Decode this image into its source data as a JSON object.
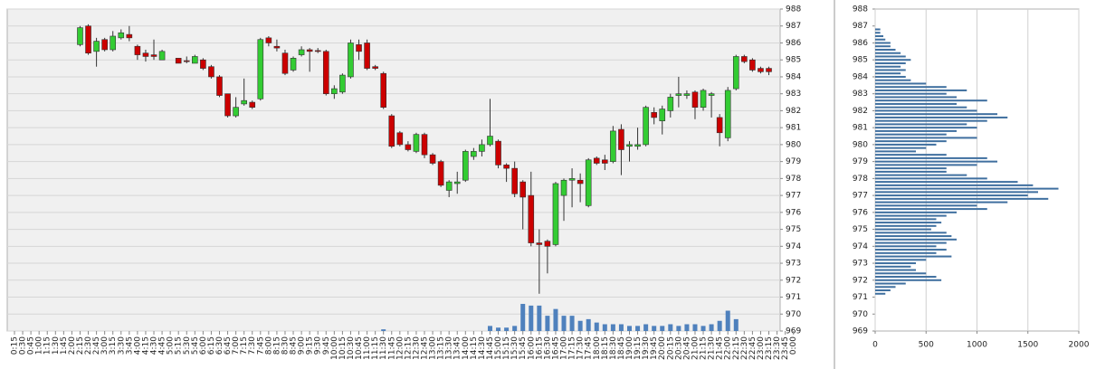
{
  "chart_data": [
    {
      "type": "candlestick",
      "categories": [
        "0:15",
        "0:30",
        "0:45",
        "1:00",
        "1:15",
        "1:30",
        "1:45",
        "2:00",
        "2:15",
        "2:30",
        "2:45",
        "3:00",
        "3:15",
        "3:30",
        "3:45",
        "4:00",
        "4:15",
        "4:30",
        "4:45",
        "5:00",
        "5:15",
        "5:30",
        "5:45",
        "6:00",
        "6:15",
        "6:30",
        "6:45",
        "7:00",
        "7:15",
        "7:30",
        "7:45",
        "8:00",
        "8:15",
        "8:30",
        "8:45",
        "9:00",
        "9:15",
        "9:30",
        "9:45",
        "10:00",
        "10:15",
        "10:30",
        "10:45",
        "11:00",
        "11:15",
        "11:30",
        "11:45",
        "12:00",
        "12:15",
        "12:30",
        "12:45",
        "13:00",
        "13:15",
        "13:30",
        "13:45",
        "14:00",
        "14:15",
        "14:30",
        "14:45",
        "15:00",
        "15:15",
        "15:30",
        "15:45",
        "16:00",
        "16:15",
        "16:30",
        "16:45",
        "17:00",
        "17:15",
        "17:30",
        "17:45",
        "18:00",
        "18:15",
        "18:30",
        "18:45",
        "19:00",
        "19:15",
        "19:30",
        "19:45",
        "20:00",
        "20:15",
        "20:30",
        "20:45",
        "21:00",
        "21:15",
        "21:30",
        "21:45",
        "22:00",
        "22:15",
        "22:30",
        "22:45",
        "23:00",
        "23:15",
        "23:30",
        "23:45",
        "0:00"
      ],
      "open": [
        null,
        null,
        null,
        null,
        null,
        null,
        null,
        null,
        985.9,
        987.0,
        985.5,
        986.2,
        985.6,
        986.3,
        986.5,
        985.8,
        985.4,
        985.3,
        985.0,
        null,
        985.1,
        984.95,
        984.8,
        985.0,
        984.6,
        984.0,
        983.0,
        981.7,
        982.4,
        982.5,
        982.7,
        986.3,
        985.8,
        985.4,
        984.4,
        985.3,
        985.6,
        985.55,
        985.5,
        983.0,
        983.1,
        984.0,
        985.9,
        986.0,
        984.6,
        984.2,
        981.7,
        980.7,
        980.0,
        979.6,
        980.6,
        979.4,
        979.0,
        977.3,
        977.7,
        977.9,
        979.3,
        979.6,
        980.0,
        980.2,
        978.8,
        978.6,
        977.8,
        977.0,
        974.2,
        974.3,
        974.1,
        977.0,
        977.9,
        977.9,
        976.4,
        979.2,
        979.1,
        979.0,
        980.9,
        979.9,
        979.9,
        980.0,
        981.9,
        981.4,
        982.0,
        982.9,
        982.9,
        983.1,
        982.2,
        982.9,
        981.6,
        980.4,
        983.3,
        985.2,
        985.0,
        984.5,
        984.5,
        null,
        null,
        null
      ],
      "high": [
        null,
        null,
        null,
        null,
        null,
        null,
        null,
        null,
        987.0,
        987.1,
        986.3,
        986.3,
        986.7,
        986.8,
        987.0,
        985.9,
        985.6,
        986.2,
        985.6,
        null,
        985.1,
        985.2,
        985.3,
        985.1,
        984.7,
        984.1,
        983.0,
        982.8,
        983.9,
        982.6,
        986.3,
        986.4,
        986.2,
        985.6,
        985.2,
        985.8,
        985.7,
        985.7,
        985.6,
        983.5,
        984.2,
        986.2,
        986.2,
        986.2,
        984.7,
        984.3,
        981.8,
        980.8,
        980.2,
        980.7,
        980.7,
        979.5,
        979.1,
        977.9,
        978.4,
        979.7,
        979.8,
        980.3,
        982.7,
        980.3,
        978.9,
        979.0,
        977.9,
        978.4,
        975.0,
        974.4,
        977.8,
        978.0,
        978.6,
        978.3,
        979.2,
        979.3,
        979.4,
        981.1,
        981.2,
        980.2,
        981.0,
        982.3,
        982.2,
        982.3,
        983.0,
        984.0,
        983.2,
        983.2,
        983.3,
        983.1,
        981.8,
        983.4,
        985.3,
        985.3,
        985.1,
        984.6,
        984.6,
        null,
        null,
        null
      ],
      "low": [
        null,
        null,
        null,
        null,
        null,
        null,
        null,
        null,
        985.8,
        985.3,
        984.6,
        985.5,
        985.5,
        986.2,
        986.1,
        985.0,
        984.9,
        985.0,
        985.0,
        null,
        984.8,
        984.8,
        984.8,
        984.4,
        983.9,
        982.8,
        981.6,
        981.6,
        982.3,
        982.1,
        982.6,
        985.8,
        985.5,
        984.1,
        984.3,
        985.2,
        984.3,
        985.4,
        982.9,
        982.7,
        983.0,
        983.9,
        985.0,
        984.4,
        984.4,
        982.1,
        979.8,
        979.9,
        979.6,
        979.5,
        979.2,
        978.8,
        977.5,
        976.9,
        977.1,
        977.8,
        979.1,
        979.3,
        979.9,
        978.6,
        977.8,
        976.9,
        975.0,
        974.0,
        971.2,
        972.4,
        974.0,
        975.5,
        976.3,
        976.6,
        976.3,
        978.8,
        978.5,
        978.9,
        978.2,
        979.0,
        979.7,
        979.9,
        981.2,
        980.6,
        981.6,
        982.2,
        982.7,
        981.5,
        982.0,
        981.6,
        979.9,
        980.2,
        983.2,
        984.8,
        984.3,
        984.2,
        984.1,
        null,
        null,
        null
      ],
      "close": [
        null,
        null,
        null,
        null,
        null,
        null,
        null,
        null,
        986.9,
        985.4,
        986.1,
        985.6,
        986.4,
        986.6,
        986.3,
        985.3,
        985.2,
        985.2,
        985.5,
        null,
        984.8,
        984.9,
        985.2,
        984.5,
        984.0,
        982.9,
        981.7,
        982.2,
        982.6,
        982.2,
        986.2,
        986.0,
        985.7,
        984.2,
        985.1,
        985.6,
        985.5,
        985.5,
        983.0,
        983.3,
        984.1,
        986.0,
        985.5,
        984.5,
        984.5,
        982.2,
        979.9,
        980.0,
        979.7,
        980.6,
        979.4,
        978.9,
        977.6,
        977.8,
        977.8,
        979.6,
        979.6,
        980.0,
        980.5,
        978.8,
        978.6,
        977.1,
        976.9,
        974.2,
        974.1,
        974.0,
        977.7,
        977.9,
        978.0,
        977.7,
        979.1,
        978.9,
        978.9,
        980.8,
        979.7,
        980.0,
        980.0,
        982.2,
        981.6,
        982.1,
        982.8,
        983.0,
        983.0,
        982.2,
        983.2,
        983.0,
        980.7,
        983.2,
        985.2,
        984.9,
        984.4,
        984.3,
        984.3,
        null,
        null,
        null
      ],
      "volume": [
        null,
        null,
        null,
        null,
        null,
        null,
        null,
        null,
        null,
        null,
        null,
        null,
        null,
        null,
        null,
        null,
        null,
        null,
        null,
        null,
        null,
        null,
        null,
        null,
        null,
        null,
        null,
        null,
        null,
        null,
        null,
        null,
        null,
        null,
        null,
        null,
        null,
        null,
        null,
        null,
        null,
        null,
        null,
        null,
        null,
        969.1,
        null,
        null,
        null,
        null,
        null,
        null,
        null,
        null,
        null,
        null,
        null,
        null,
        969.3,
        969.2,
        969.2,
        969.3,
        970.6,
        970.5,
        970.5,
        969.9,
        970.3,
        969.9,
        969.9,
        969.6,
        969.7,
        969.5,
        969.4,
        969.4,
        969.4,
        969.3,
        969.3,
        969.4,
        969.3,
        969.3,
        969.4,
        969.3,
        969.4,
        969.4,
        969.3,
        969.4,
        969.6,
        970.2,
        969.7,
        null,
        null,
        null,
        null,
        null,
        null,
        null
      ],
      "up_color": "#33cc33",
      "down_color": "#cc0000",
      "volume_color": "#4f81bd",
      "ylim": [
        969,
        988
      ],
      "yticks": [
        969,
        970,
        971,
        972,
        973,
        974,
        975,
        976,
        977,
        978,
        979,
        980,
        981,
        982,
        983,
        984,
        985,
        986,
        987,
        988
      ],
      "grid": true
    },
    {
      "type": "bar",
      "orientation": "horizontal",
      "color": "#3f6f9f",
      "y": [
        986.8,
        986.6,
        986.4,
        986.2,
        986.0,
        985.8,
        985.6,
        985.4,
        985.2,
        985.0,
        984.8,
        984.6,
        984.4,
        984.2,
        984.0,
        983.8,
        983.6,
        983.4,
        983.2,
        983.0,
        982.8,
        982.6,
        982.4,
        982.2,
        982.0,
        981.8,
        981.6,
        981.4,
        981.2,
        981.0,
        980.8,
        980.6,
        980.4,
        980.2,
        980.0,
        979.8,
        979.6,
        979.4,
        979.2,
        979.0,
        978.8,
        978.6,
        978.4,
        978.2,
        978.0,
        977.8,
        977.6,
        977.4,
        977.2,
        977.0,
        976.8,
        976.6,
        976.4,
        976.2,
        976.0,
        975.8,
        975.6,
        975.4,
        975.2,
        975.0,
        974.8,
        974.6,
        974.4,
        974.2,
        974.0,
        973.8,
        973.6,
        973.4,
        973.2,
        973.0,
        972.8,
        972.6,
        972.4,
        972.2,
        972.0,
        971.8,
        971.6,
        971.4,
        971.2
      ],
      "values": [
        50,
        50,
        80,
        100,
        150,
        150,
        200,
        250,
        300,
        350,
        300,
        250,
        300,
        250,
        300,
        350,
        500,
        700,
        900,
        700,
        800,
        1100,
        800,
        900,
        1000,
        1200,
        1300,
        1100,
        900,
        1000,
        800,
        700,
        1000,
        700,
        600,
        500,
        400,
        700,
        1100,
        1200,
        1000,
        700,
        700,
        900,
        1100,
        1400,
        1550,
        1800,
        1600,
        1500,
        1700,
        1300,
        1000,
        1100,
        800,
        700,
        600,
        650,
        600,
        550,
        700,
        750,
        800,
        700,
        600,
        700,
        600,
        750,
        500,
        400,
        350,
        400,
        500,
        600,
        650,
        300,
        200,
        150,
        100
      ],
      "xlim": [
        0,
        2000
      ],
      "xticks": [
        0,
        500,
        1000,
        1500,
        2000
      ],
      "ylim": [
        969,
        988
      ],
      "yticks": [
        969,
        970,
        971,
        972,
        973,
        974,
        975,
        976,
        977,
        978,
        979,
        980,
        981,
        982,
        983,
        984,
        985,
        986,
        987,
        988
      ],
      "grid": true
    }
  ]
}
